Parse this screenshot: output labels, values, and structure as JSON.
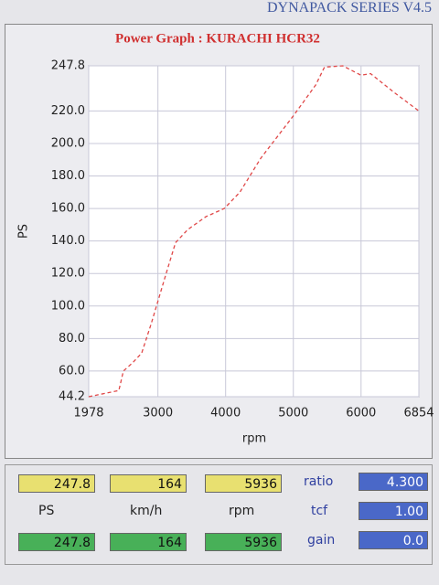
{
  "header": {
    "title": "DYNAPACK SERIES V4.5"
  },
  "chart_data": {
    "type": "line",
    "title": "Power Graph : KURACHI HCR32",
    "x_label": "rpm",
    "y_label": "PS",
    "x": [
      1978,
      2423,
      2490,
      2625,
      2760,
      2900,
      3100,
      3260,
      3440,
      3710,
      3980,
      4210,
      4520,
      5000,
      5330,
      5460,
      5730,
      6000,
      6140,
      6470,
      6854
    ],
    "series": [
      {
        "name": "PS",
        "color": "#e04848",
        "values": [
          44.2,
          48,
          60,
          65,
          71,
          89,
          117,
          139,
          147,
          155,
          160,
          170,
          191,
          217,
          236,
          247,
          247.8,
          242,
          243,
          232,
          220
        ]
      }
    ],
    "xlim": [
      1978,
      6854
    ],
    "xticks": [
      1978,
      3000,
      4000,
      5000,
      6000,
      6854
    ],
    "ylim": [
      44.2,
      247.8
    ],
    "yticks": [
      44.2,
      {
        "value": 60,
        "label": "60.0"
      },
      {
        "value": 80,
        "label": "80.0"
      },
      {
        "value": 100,
        "label": "100.0"
      },
      {
        "value": 120,
        "label": "120.0"
      },
      {
        "value": 140,
        "label": "140.0"
      },
      {
        "value": 160,
        "label": "160.0"
      },
      {
        "value": 180,
        "label": "180.0"
      },
      {
        "value": 200,
        "label": "200.0"
      },
      {
        "value": 220,
        "label": "220.0"
      },
      247.8
    ],
    "grid": true,
    "dashed": true
  },
  "readouts": {
    "top": [
      "247.8",
      "164",
      "5936"
    ],
    "labels": [
      "PS",
      "km/h",
      "rpm"
    ],
    "bottom": [
      "247.8",
      "164",
      "5936"
    ],
    "params": [
      {
        "name": "ratio",
        "value": "4.300"
      },
      {
        "name": "tcf",
        "value": "1.00"
      },
      {
        "name": "gain",
        "value": "0.0"
      }
    ]
  }
}
